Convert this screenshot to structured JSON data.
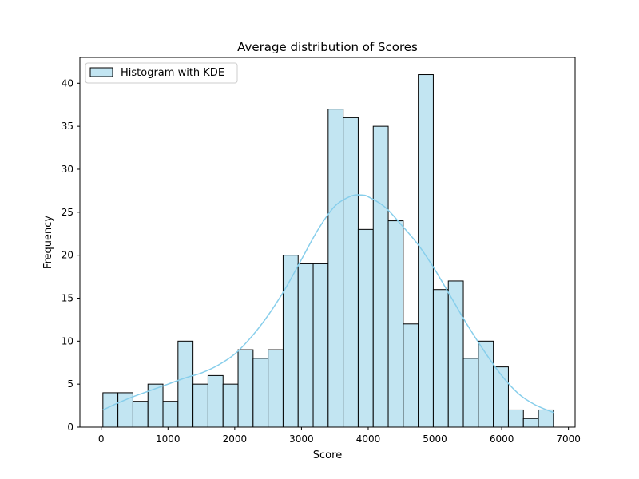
{
  "chart_data": {
    "type": "bar",
    "title": "Average distribution of Scores",
    "xlabel": "Score",
    "ylabel": "Frequency",
    "xlim": [
      -320,
      7100
    ],
    "ylim": [
      0,
      43
    ],
    "xticks": [
      0,
      1000,
      2000,
      3000,
      4000,
      5000,
      6000,
      7000
    ],
    "yticks": [
      0,
      5,
      10,
      15,
      20,
      25,
      30,
      35,
      40
    ],
    "xtick_labels": [
      "0",
      "1000",
      "2000",
      "3000",
      "4000",
      "5000",
      "6000",
      "7000"
    ],
    "ytick_labels": [
      "0",
      "5",
      "10",
      "15",
      "20",
      "25",
      "30",
      "35",
      "40"
    ],
    "grid": false,
    "legend": {
      "position": "top-left",
      "label": "Histogram with KDE"
    },
    "bin_start": 25,
    "bin_width": 225,
    "bin_edges": [
      25,
      250,
      475,
      700,
      925,
      1150,
      1375,
      1600,
      1825,
      2050,
      2275,
      2500,
      2725,
      2950,
      3175,
      3400,
      3625,
      3850,
      4075,
      4300,
      4525,
      4750,
      4975,
      5200,
      5425,
      5650,
      5875,
      6100,
      6325,
      6550,
      6775
    ],
    "counts": [
      4,
      4,
      3,
      5,
      3,
      10,
      5,
      6,
      5,
      9,
      8,
      9,
      20,
      19,
      19,
      37,
      36,
      23,
      35,
      24,
      12,
      41,
      16,
      17,
      8,
      10,
      7,
      2,
      1,
      2
    ],
    "kde": {
      "x": [
        25,
        250,
        500,
        750,
        1000,
        1250,
        1500,
        1750,
        2000,
        2250,
        2500,
        2750,
        3000,
        3250,
        3500,
        3750,
        3900,
        4000,
        4250,
        4500,
        4750,
        5000,
        5250,
        5500,
        5750,
        6000,
        6250,
        6500,
        6775
      ],
      "y": [
        2,
        2.8,
        3.6,
        4.3,
        5,
        5.7,
        6.3,
        7.2,
        8.5,
        10.5,
        13,
        16,
        19.5,
        23,
        25.7,
        26.9,
        27,
        26.8,
        25.6,
        23.5,
        21.2,
        18.3,
        15,
        11.7,
        8.7,
        6,
        3.9,
        2.6,
        1.7
      ]
    },
    "colors": {
      "bar_fill": "#c2e5f2",
      "bar_edge": "#000000",
      "kde_line": "#87ceeb"
    }
  }
}
